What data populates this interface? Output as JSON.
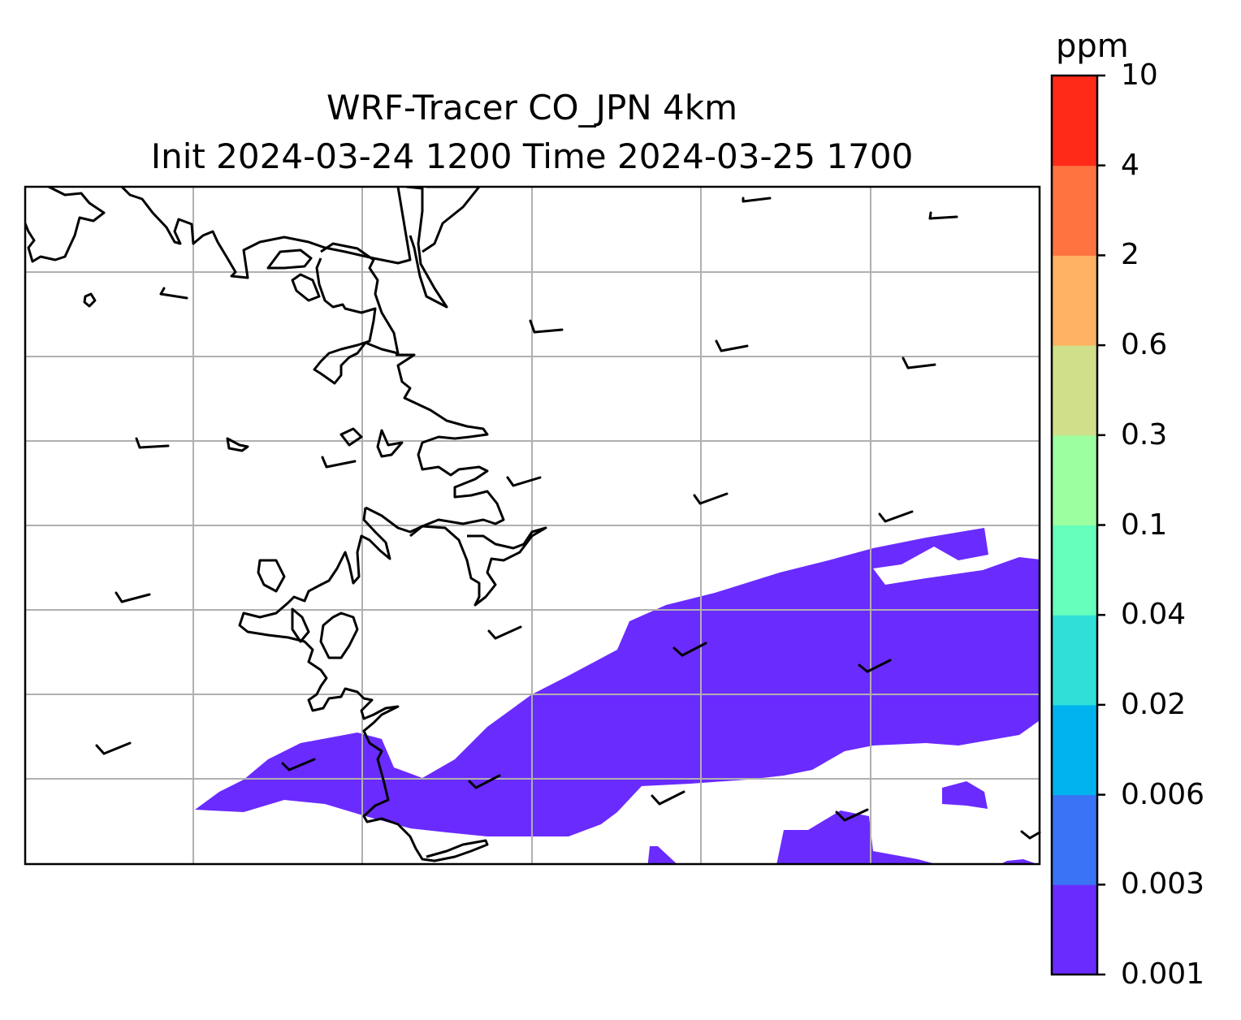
{
  "title": {
    "line1": "WRF-Tracer CO_JPN 4km",
    "line2": "Init 2024-03-24 1200 Time 2024-03-25 1700"
  },
  "colorbar": {
    "unit": "ppm",
    "levels": [
      "0.001",
      "0.003",
      "0.006",
      "0.02",
      "0.04",
      "0.1",
      "0.3",
      "0.6",
      "2",
      "4",
      "10"
    ],
    "colors": [
      "#6a2bff",
      "#3a73f5",
      "#00b2ee",
      "#30e0d8",
      "#66ffbb",
      "#9cffa0",
      "#d0e08a",
      "#ffb263",
      "#ff7340",
      "#ff2a18"
    ]
  },
  "map": {
    "plume_color": "#6a2bff",
    "plume_level": "0.001–0.003 ppm",
    "gridline_color": "#b0b0b0",
    "coastline_color": "#000000",
    "wind_barb_color": "#000000"
  }
}
